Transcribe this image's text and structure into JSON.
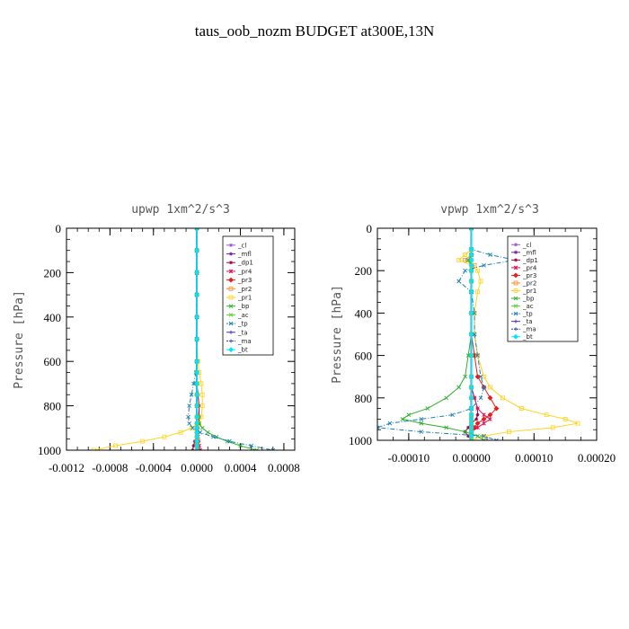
{
  "figure_title": "taus_oob_nozm  BUDGET at300E,13N",
  "legend_entries": [
    {
      "label": "_cl",
      "color": "#9b59d0"
    },
    {
      "label": "_mfl",
      "color": "#7b1fa2"
    },
    {
      "label": "_dp1",
      "color": "#a0004a"
    },
    {
      "label": "_pr4",
      "color": "#e0115f"
    },
    {
      "label": "_pr3",
      "color": "#e81c1c"
    },
    {
      "label": "_pr2",
      "color": "#ff8c2a"
    },
    {
      "label": "_pr1",
      "color": "#ffd21c"
    },
    {
      "label": "_bp",
      "color": "#2ab02a"
    },
    {
      "label": "_ac",
      "color": "#5ad02a"
    },
    {
      "label": "_tp",
      "color": "#1c7fb0"
    },
    {
      "label": "_ta",
      "color": "#4a2ad0"
    },
    {
      "label": "_ma",
      "color": "#1c4ab0"
    },
    {
      "label": "_bt",
      "color": "#00e5ff"
    }
  ],
  "chart_data": [
    {
      "type": "line",
      "title": "upwp  1xm^2/s^3",
      "ylabel": "Pressure [hPa]",
      "xlabel": "",
      "xlim": [
        -0.0012,
        0.0009
      ],
      "ylim": [
        1000,
        0
      ],
      "x_ticks": [
        -0.0012,
        -0.0008,
        -0.0004,
        0.0,
        0.0004,
        0.0008
      ],
      "x_tick_labels": [
        "-0.0012",
        "-0.0008",
        "-0.0004",
        "0.0000",
        "0.0004",
        "0.0008"
      ],
      "y_ticks": [
        0,
        200,
        400,
        600,
        800,
        1000
      ],
      "y_tick_labels": [
        "0",
        "200",
        "400",
        "600",
        "800",
        "1000"
      ],
      "legend_position": "top-right",
      "pressure": [
        0,
        100,
        200,
        300,
        400,
        500,
        600,
        650,
        700,
        750,
        800,
        850,
        880,
        900,
        920,
        940,
        960,
        980,
        1000
      ],
      "series": [
        {
          "name": "_cl",
          "values": [
            0,
            0,
            0,
            0,
            0,
            0,
            0,
            0,
            0,
            0,
            0,
            0,
            0,
            0,
            0,
            0,
            0,
            0,
            0
          ]
        },
        {
          "name": "_mfl",
          "values": [
            0,
            0,
            0,
            0,
            0,
            0,
            0,
            0,
            0,
            0,
            0,
            0,
            0,
            0,
            0,
            0,
            0,
            0,
            0
          ]
        },
        {
          "name": "_dp1",
          "values": [
            0,
            0,
            0,
            0,
            0,
            0,
            0,
            0,
            0,
            1e-05,
            2e-05,
            2e-05,
            2e-05,
            1e-05,
            1e-05,
            0,
            -2e-05,
            -3e-05,
            -4e-05
          ]
        },
        {
          "name": "_pr4",
          "values": [
            0,
            0,
            0,
            0,
            0,
            0,
            0,
            0,
            0,
            0,
            0,
            0,
            0,
            0,
            0,
            1e-05,
            1e-05,
            2e-05,
            3e-05
          ]
        },
        {
          "name": "_pr3",
          "values": [
            0,
            0,
            0,
            0,
            0,
            0,
            0,
            0,
            0,
            0,
            0,
            0,
            0,
            0,
            0,
            0,
            1e-05,
            1e-05,
            1e-05
          ]
        },
        {
          "name": "_pr2",
          "values": [
            0,
            0,
            0,
            0,
            0,
            0,
            0,
            0,
            0,
            0,
            0,
            0,
            0,
            0,
            0,
            0,
            0,
            0,
            0
          ]
        },
        {
          "name": "_pr1",
          "values": [
            0,
            0,
            0,
            0,
            0,
            0,
            1e-05,
            2e-05,
            4e-05,
            5e-05,
            5e-05,
            4e-05,
            2e-05,
            -5e-05,
            -0.00015,
            -0.0003,
            -0.0005,
            -0.00075,
            -0.00095
          ]
        },
        {
          "name": "_bp",
          "values": [
            0,
            0,
            0,
            0,
            0,
            0,
            0,
            0,
            0,
            0,
            0,
            1e-05,
            2e-05,
            5e-05,
            0.0001,
            0.00018,
            0.00028,
            0.0004,
            0.00055
          ]
        },
        {
          "name": "_ac",
          "values": [
            0,
            0,
            0,
            0,
            0,
            0,
            0,
            0,
            0,
            0,
            0,
            0,
            0,
            0,
            0,
            0,
            0,
            0,
            0
          ]
        },
        {
          "name": "_tp",
          "values": [
            0,
            0,
            0,
            0,
            0,
            0,
            0,
            -1e-05,
            -3e-05,
            -5e-05,
            -7e-05,
            -8e-05,
            -7e-05,
            -4e-05,
            3e-05,
            0.00015,
            0.0003,
            0.0005,
            0.0007
          ]
        },
        {
          "name": "_ta",
          "values": [
            0,
            0,
            0,
            0,
            0,
            0,
            0,
            0,
            0,
            0,
            0,
            0,
            0,
            0,
            0,
            0,
            0,
            0,
            0
          ]
        },
        {
          "name": "_ma",
          "values": [
            0,
            0,
            0,
            0,
            0,
            0,
            0,
            0,
            0,
            0,
            0,
            0,
            0,
            0,
            0,
            0,
            0,
            0,
            0
          ]
        },
        {
          "name": "_bt",
          "values": [
            0,
            0,
            0,
            0,
            0,
            0,
            0,
            0,
            0,
            0,
            0,
            0,
            0,
            0,
            0,
            0,
            0,
            0,
            0
          ]
        }
      ]
    },
    {
      "type": "line",
      "title": "vpwp  1xm^2/s^3",
      "ylabel": "Pressure [hPa]",
      "xlabel": "",
      "xlim": [
        -0.00015,
        0.0002
      ],
      "ylim": [
        1000,
        0
      ],
      "x_ticks": [
        -0.0001,
        0.0,
        0.0001,
        0.0002
      ],
      "x_tick_labels": [
        "-0.00010",
        "0.00000",
        "0.00010",
        "0.00020"
      ],
      "y_ticks": [
        0,
        200,
        400,
        600,
        800,
        1000
      ],
      "y_tick_labels": [
        "0",
        "200",
        "400",
        "600",
        "800",
        "1000"
      ],
      "legend_position": "top-right",
      "pressure": [
        0,
        100,
        125,
        150,
        175,
        200,
        250,
        300,
        400,
        500,
        600,
        700,
        750,
        800,
        850,
        880,
        900,
        920,
        940,
        960,
        980,
        1000
      ],
      "series": [
        {
          "name": "_cl",
          "values": [
            0,
            0,
            0,
            0,
            0,
            0,
            0,
            0,
            0,
            0,
            0,
            0,
            0,
            0,
            0,
            0,
            0,
            0,
            0,
            0,
            0,
            0
          ]
        },
        {
          "name": "_mfl",
          "values": [
            0,
            0,
            0,
            0,
            0,
            0,
            0,
            0,
            0,
            0,
            0,
            0,
            0,
            0,
            0,
            0,
            0,
            0,
            0,
            0,
            0,
            0
          ]
        },
        {
          "name": "_dp1",
          "values": [
            0,
            0,
            0,
            0,
            0,
            0,
            0,
            0,
            0,
            0,
            0,
            0,
            0,
            5e-06,
            1e-05,
            1e-05,
            8e-06,
            0,
            -5e-06,
            -1e-05,
            -5e-06,
            0
          ]
        },
        {
          "name": "_pr4",
          "values": [
            0,
            0,
            0,
            0,
            0,
            0,
            0,
            0,
            0,
            0,
            0,
            0,
            0,
            5e-06,
            1e-05,
            2e-05,
            3e-05,
            2e-05,
            1e-05,
            0,
            0,
            0
          ]
        },
        {
          "name": "_pr3",
          "values": [
            0,
            0,
            0,
            0,
            0,
            0,
            0,
            0,
            0,
            0,
            5e-06,
            1e-05,
            2e-05,
            3e-05,
            4e-05,
            3e-05,
            2e-05,
            1e-05,
            5e-06,
            0,
            0,
            0
          ]
        },
        {
          "name": "_pr2",
          "values": [
            0,
            0,
            0,
            -1e-05,
            5e-06,
            0,
            0,
            0,
            0,
            0,
            0,
            0,
            0,
            0,
            0,
            0,
            0,
            0,
            0,
            0,
            0,
            0
          ]
        },
        {
          "name": "_pr1",
          "values": [
            0,
            0,
            -1e-05,
            -2e-05,
            0,
            1e-05,
            1.5e-05,
            1e-05,
            5e-06,
            5e-06,
            1e-05,
            2e-05,
            3e-05,
            5e-05,
            8e-05,
            0.00012,
            0.00015,
            0.00017,
            0.00013,
            6e-05,
            2e-05,
            0
          ]
        },
        {
          "name": "_bp",
          "values": [
            0,
            0,
            0,
            -5e-06,
            0,
            0,
            0,
            0,
            0,
            0,
            -5e-06,
            -1e-05,
            -2e-05,
            -4e-05,
            -7e-05,
            -0.0001,
            -0.00011,
            -8e-05,
            -4e-05,
            -1e-05,
            1e-05,
            2e-05
          ]
        },
        {
          "name": "_ac",
          "values": [
            0,
            0,
            0,
            0,
            0,
            0,
            0,
            0,
            0,
            0,
            0,
            0,
            0,
            0,
            0,
            0,
            0,
            0,
            0,
            0,
            0,
            0
          ]
        },
        {
          "name": "_tp",
          "values": [
            0,
            0,
            3e-05,
            7e-05,
            2e-05,
            -1e-05,
            -2e-05,
            0,
            5e-06,
            5e-06,
            1e-05,
            1.5e-05,
            2e-05,
            1.5e-05,
            0,
            -3e-05,
            -8e-05,
            -0.00013,
            -0.00015,
            -8e-05,
            2e-05,
            4e-05
          ]
        },
        {
          "name": "_ta",
          "values": [
            0,
            0,
            0,
            0,
            0,
            0,
            0,
            0,
            0,
            0,
            0,
            0,
            0,
            0,
            0,
            0,
            0,
            0,
            0,
            0,
            0,
            0
          ]
        },
        {
          "name": "_ma",
          "values": [
            0,
            0,
            0,
            0,
            0,
            0,
            0,
            0,
            0,
            0,
            0,
            0,
            0,
            0,
            0,
            0,
            0,
            0,
            0,
            0,
            0,
            0
          ]
        },
        {
          "name": "_bt",
          "values": [
            0,
            0,
            0,
            0,
            0,
            0,
            0,
            0,
            0,
            0,
            0,
            0,
            0,
            0,
            0,
            0,
            0,
            0,
            0,
            0,
            0,
            0
          ]
        }
      ]
    }
  ]
}
